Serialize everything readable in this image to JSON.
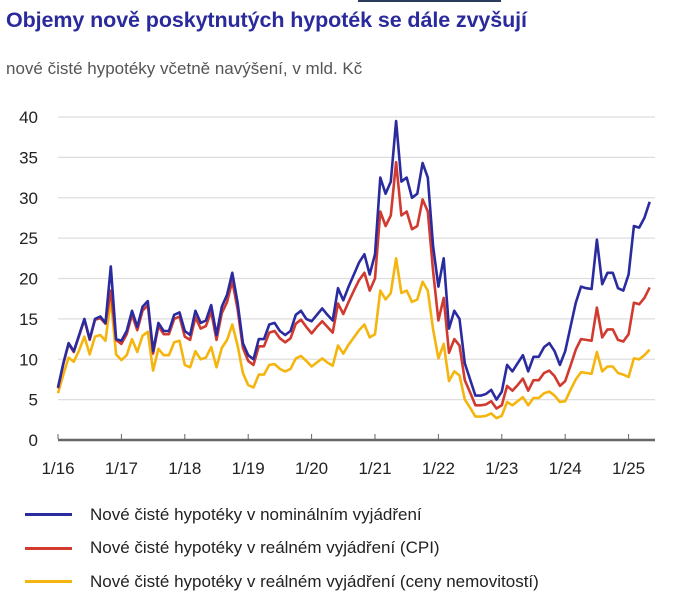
{
  "header": {
    "title": "Objemy nově poskytnutých hypoték se dále zvyšují",
    "subtitle": "nové čisté hypotéky včetně navýšení, v mld. Kč"
  },
  "chart_data": {
    "type": "line",
    "title": "Objemy nově poskytnutých hypoték se dále zvyšují",
    "subtitle": "nové čisté hypotéky včetně navýšení, v mld. Kč",
    "xlabel": "",
    "ylabel": "",
    "frequency": "monthly",
    "x_start": "2016-01",
    "x_end": "2025-05",
    "x_tick_labels": [
      "1/16",
      "1/17",
      "1/18",
      "1/19",
      "1/20",
      "1/21",
      "1/22",
      "1/23",
      "1/24",
      "1/25"
    ],
    "y_ticks": [
      0,
      5,
      10,
      15,
      20,
      25,
      30,
      35,
      40
    ],
    "ylim": [
      0,
      40
    ],
    "grid": "horizontal",
    "legend_position": "bottom",
    "series": [
      {
        "name": "Nové čisté hypotéky v nominálním vyjádření",
        "color": "#2b2ba0",
        "values": [
          6.5,
          9.5,
          12,
          11,
          13,
          15,
          12.5,
          15,
          15.3,
          14.5,
          21.5,
          12.5,
          12.3,
          13.5,
          16,
          14,
          16.5,
          17.2,
          11,
          14.5,
          13.5,
          13.5,
          15.5,
          15.8,
          13.5,
          13,
          16,
          14.5,
          14.8,
          16.7,
          13,
          16.5,
          18,
          20.7,
          17,
          12,
          10.5,
          10,
          12.5,
          12.5,
          14.3,
          14.5,
          13.5,
          13,
          13.5,
          15.5,
          16,
          15,
          14.7,
          15.5,
          16.3,
          15.5,
          14.8,
          18.8,
          17.3,
          19,
          20.5,
          22,
          23,
          20.5,
          23,
          32.5,
          30.5,
          32,
          39.5,
          32,
          32.5,
          30,
          30.5,
          34.3,
          32.5,
          24,
          19,
          22.5,
          13.8,
          16,
          15,
          9.5,
          7.5,
          5.5,
          5.5,
          5.7,
          6.2,
          5,
          6,
          9.3,
          8.5,
          9.5,
          10.5,
          8.5,
          10.3,
          10.3,
          11.5,
          12,
          11,
          9.3,
          11,
          14,
          17,
          19,
          18.8,
          18.7,
          24.8,
          19.3,
          20.7,
          20.7,
          18.8,
          18.5,
          20.5,
          26.5,
          26.3,
          27.5,
          29.5
        ]
      },
      {
        "name": "Nové čisté hypotéky v reálném vyjádření (CPI)",
        "color": "#d13a2f",
        "values": [
          6.4,
          9.4,
          11.9,
          10.9,
          12.9,
          14.9,
          12.4,
          14.9,
          15.1,
          14.4,
          18.5,
          12.4,
          11.9,
          13.1,
          15.5,
          13.6,
          16,
          16.7,
          10.7,
          14.1,
          13.1,
          13.1,
          15,
          15.3,
          12.8,
          12.4,
          15.2,
          13.8,
          14.1,
          15.9,
          12.4,
          15.7,
          17.1,
          19.7,
          16.2,
          11.4,
          9.8,
          9.3,
          11.6,
          11.6,
          13.3,
          13.5,
          12.6,
          12.1,
          12.6,
          14.4,
          14.9,
          14,
          13.2,
          14,
          14.7,
          14,
          13.3,
          16.9,
          15.6,
          17.1,
          18.5,
          19.8,
          20.7,
          18.5,
          20,
          28.3,
          26.5,
          27.8,
          34.4,
          27.8,
          28.3,
          26.1,
          26.5,
          29.8,
          28.3,
          20.9,
          14.8,
          17.6,
          10.8,
          12.5,
          11.7,
          7.4,
          5.9,
          4.3,
          4.3,
          4.4,
          4.8,
          3.9,
          4.3,
          6.7,
          6.1,
          6.8,
          7.6,
          6.1,
          7.4,
          7.4,
          8.3,
          8.6,
          7.9,
          6.7,
          7.3,
          9.2,
          11.2,
          12.5,
          12.4,
          12.3,
          16.4,
          12.7,
          13.7,
          13.7,
          12.4,
          12.2,
          13.1,
          17,
          16.8,
          17.6,
          18.9
        ]
      },
      {
        "name": "Nové čisté hypotéky v reálném vyjádření (ceny nemovitostí)",
        "color": "#f5b50f",
        "values": [
          5.8,
          8.1,
          10.2,
          9.7,
          11.1,
          12.8,
          10.6,
          12.8,
          13,
          12.3,
          17.5,
          10.6,
          9.9,
          10.5,
          12.5,
          10.9,
          12.9,
          13.4,
          8.6,
          11.3,
          10.5,
          10.5,
          12.1,
          12.3,
          9.3,
          9,
          11,
          10,
          10.2,
          11.5,
          9,
          11.4,
          12.4,
          14.3,
          11.7,
          8.3,
          6.8,
          6.5,
          8.1,
          8.1,
          9.3,
          9.4,
          8.8,
          8.5,
          8.8,
          10.1,
          10.4,
          9.8,
          9.1,
          9.6,
          10.1,
          9.6,
          9.2,
          11.7,
          10.7,
          11.8,
          12.7,
          13.6,
          14.3,
          12.7,
          13.1,
          18.5,
          17.4,
          18.2,
          22.5,
          18.2,
          18.5,
          17.1,
          17.4,
          19.6,
          18.5,
          13.7,
          10.1,
          11.9,
          7.3,
          8.5,
          8,
          5,
          4,
          2.9,
          2.9,
          3,
          3.3,
          2.7,
          3,
          4.7,
          4.3,
          4.8,
          5.3,
          4.3,
          5.2,
          5.2,
          5.8,
          6,
          5.5,
          4.7,
          4.8,
          6.2,
          7.5,
          8.4,
          8.3,
          8.2,
          10.9,
          8.5,
          9.1,
          9.1,
          8.3,
          8.1,
          7.8,
          10.1,
          10,
          10.5,
          11.2
        ]
      }
    ]
  }
}
